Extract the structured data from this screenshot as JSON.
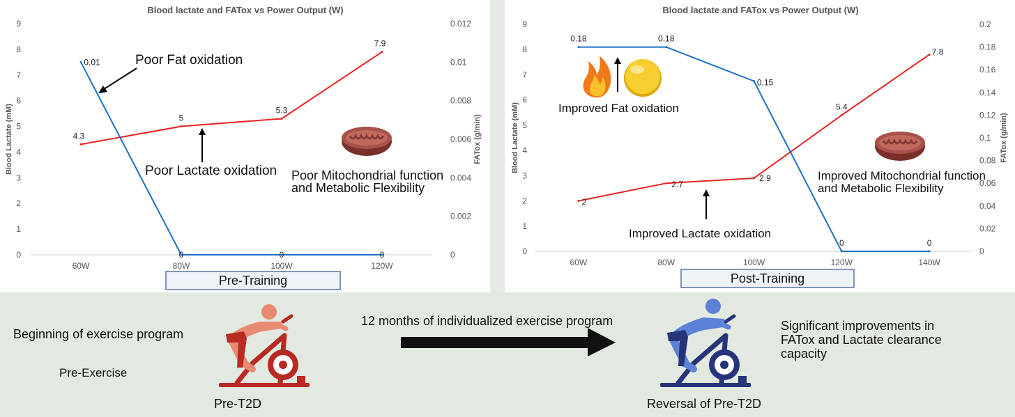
{
  "chart_data": [
    {
      "type": "line",
      "title": "Blood lactate and FATox vs Power Output (W)",
      "xlabel": "",
      "ylabel": "Blood Lactate (mM)",
      "y2label": "FATox (g/min)",
      "categories": [
        "60W",
        "80W",
        "100W",
        "120W"
      ],
      "ylim": [
        0,
        9
      ],
      "y2lim": [
        0,
        0.012
      ],
      "yticks": [
        "0",
        "1",
        "2",
        "3",
        "4",
        "5",
        "6",
        "7",
        "8",
        "9"
      ],
      "y2ticks": [
        "0",
        "0.002",
        "0.004",
        "0.006",
        "0.008",
        "0.01",
        "0.012"
      ],
      "grid": "x-axis line only",
      "series": [
        {
          "axis": "left",
          "color": "#e8231f",
          "values": [
            4.3,
            5,
            5.3,
            7.9
          ],
          "labels": [
            "4.3",
            "5",
            "5.3",
            "7.9"
          ]
        },
        {
          "axis": "right",
          "color": "#1b6fc5",
          "values": [
            0.01,
            0,
            0,
            0
          ],
          "labels": [
            "0.01",
            "0",
            "0",
            "0"
          ]
        }
      ],
      "annotations": [
        "Poor Fat oxidation",
        "Poor Lactate oxidation",
        "Poor Mitochondrial function",
        "and Metabolic Flexibility"
      ],
      "phase_label": "Pre-Training"
    },
    {
      "type": "line",
      "title": "Blood lactate and FATox vs Power Output (W)",
      "xlabel": "",
      "ylabel": "Blood Lactate (mM)",
      "y2label": "FATox (g/min)",
      "categories": [
        "60W",
        "80W",
        "100W",
        "120W",
        "140W"
      ],
      "ylim": [
        0,
        9
      ],
      "y2lim": [
        0,
        0.2
      ],
      "yticks": [
        "0",
        "1",
        "2",
        "3",
        "4",
        "5",
        "6",
        "7",
        "8",
        "9"
      ],
      "y2ticks": [
        "0",
        "0.02",
        "0.04",
        "0.06",
        "0.08",
        "0.1",
        "0.12",
        "0.14",
        "0.16",
        "0.18",
        "0.2"
      ],
      "grid": "x-axis line only",
      "series": [
        {
          "axis": "left",
          "color": "#e8231f",
          "values": [
            2,
            2.7,
            2.9,
            5.4,
            7.8
          ],
          "labels": [
            "2",
            "2.7",
            "2.9",
            "5.4",
            "7.8"
          ]
        },
        {
          "axis": "right",
          "color": "#1b6fc5",
          "values": [
            0.18,
            0.18,
            0.15,
            0,
            0
          ],
          "labels": [
            "0.18",
            "0.18",
            "0.15",
            "0",
            "0"
          ]
        }
      ],
      "annotations": [
        "Improved Fat oxidation",
        "Improved Lactate oxidation",
        "Improved Mitochondrial function",
        "and Metabolic Flexibility"
      ],
      "phase_label": "Post-Training"
    }
  ],
  "bottom": {
    "beginning": "Beginning of exercise program",
    "pre_exercise": "Pre-Exercise",
    "months": "12 months of individualized  exercise program",
    "improvements": [
      "Significant improvements in",
      "FATox and Lactate clearance",
      "capacity"
    ],
    "pre_t2d": "Pre-T2D",
    "reversal": "Reversal of Pre-T2D"
  },
  "colors": {
    "lactate_line": "#e8231f",
    "fatox_line": "#1b6fc5",
    "cyclist_pre": "#e88a72",
    "bike_pre": "#b82a22",
    "cyclist_post": "#5b82d6",
    "bike_post": "#26357a",
    "mitochondria": "#a8504a",
    "background": "#e2e9e0"
  },
  "icons": [
    "mitochondria-icon",
    "flame-icon",
    "fat-droplet-icon",
    "cyclist-icon",
    "arrow-right-icon"
  ]
}
